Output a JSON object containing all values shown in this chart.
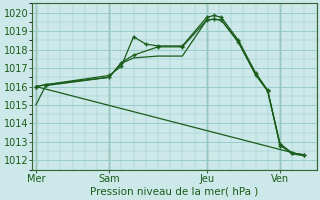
{
  "bg_color": "#cce8e8",
  "grid_color": "#99cccc",
  "line_color": "#1a5c1a",
  "title": "Pression niveau de la mer( hPa )",
  "ylim": [
    1011.5,
    1020.5
  ],
  "yticks": [
    1012,
    1013,
    1014,
    1015,
    1016,
    1017,
    1018,
    1019,
    1020
  ],
  "xtick_labels": [
    "Mer",
    "Sam",
    "Jeu",
    "Ven"
  ],
  "xtick_positions": [
    0,
    3,
    7,
    10
  ],
  "xlim": [
    -0.15,
    11.5
  ],
  "lines": [
    {
      "x": [
        0,
        0.4,
        3,
        3.5,
        4.0,
        4.5,
        5.0,
        6.0,
        7.0,
        7.3,
        7.6,
        8.3,
        9.0,
        9.5,
        10.0,
        10.5,
        11.0
      ],
      "y": [
        1016.0,
        1016.1,
        1016.6,
        1017.1,
        1018.7,
        1018.3,
        1018.2,
        1018.2,
        1019.75,
        1019.85,
        1019.75,
        1018.5,
        1016.75,
        1015.8,
        1012.8,
        1012.4,
        1012.3
      ],
      "marker": true
    },
    {
      "x": [
        0,
        0.4,
        3,
        3.5,
        4.0,
        5.0,
        6.0,
        7.0,
        7.3,
        7.6,
        8.3,
        9.0,
        9.5,
        10.0,
        10.5,
        11.0
      ],
      "y": [
        1016.0,
        1016.1,
        1016.5,
        1017.3,
        1017.7,
        1018.15,
        1018.15,
        1019.6,
        1019.65,
        1019.6,
        1018.4,
        1016.65,
        1015.75,
        1012.9,
        1012.4,
        1012.3
      ],
      "marker": true
    },
    {
      "x": [
        0,
        0.4,
        3,
        3.5,
        4.0,
        5.0,
        6.0,
        7.0,
        7.3,
        7.6,
        8.3,
        9.0,
        9.5,
        10.0,
        10.5,
        11.0
      ],
      "y": [
        1015.0,
        1016.05,
        1016.5,
        1017.25,
        1017.55,
        1017.65,
        1017.65,
        1019.6,
        1019.65,
        1019.6,
        1018.4,
        1016.65,
        1015.75,
        1012.9,
        1012.35,
        1012.25
      ],
      "marker": false
    },
    {
      "x": [
        0,
        11.0
      ],
      "y": [
        1016.0,
        1012.25
      ],
      "marker": false
    }
  ]
}
